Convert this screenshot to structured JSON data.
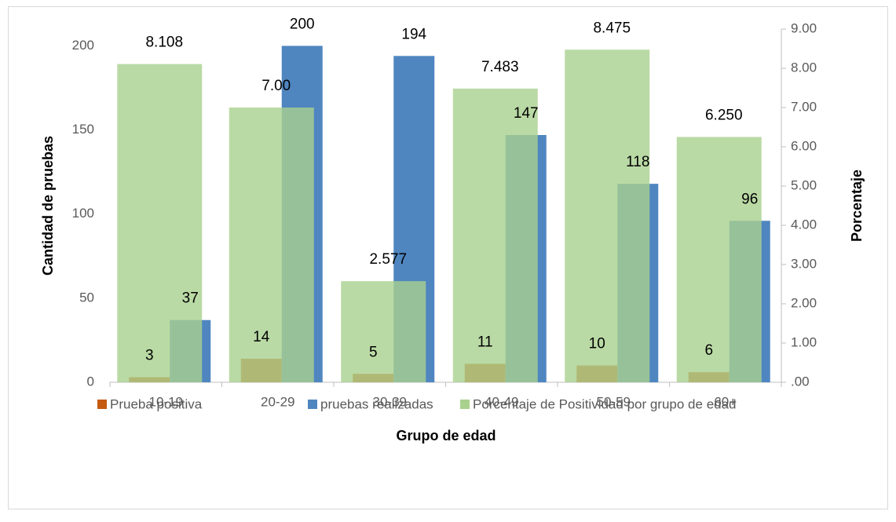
{
  "chart_data": {
    "type": "bar",
    "x_label": "Grupo de edad",
    "y_label": "Cantidad de pruebas",
    "y2_label": "Porcentaje",
    "categories": [
      "10-19",
      "20-29",
      "30-39",
      "40-49",
      "50-59",
      "60+"
    ],
    "series": [
      {
        "name": "Prueba positiva",
        "color": "#c55a11",
        "values": [
          3,
          14,
          5,
          11,
          10,
          6
        ]
      },
      {
        "name": "pruebas realizadas",
        "color": "#4f86c0",
        "values": [
          37,
          200,
          194,
          147,
          118,
          96
        ]
      },
      {
        "name": "Porcentaje de Positividad por grupo de edad",
        "color": "#a9d18e",
        "axis": "y2",
        "values": [
          8.108,
          7,
          2.577,
          7.483,
          8.475,
          6.25
        ],
        "value_labels": [
          "8.108",
          "7.00",
          "2.577",
          "7.483",
          "8.475",
          "6.250"
        ]
      }
    ],
    "ylim": [
      0,
      210
    ],
    "yticks": [
      0,
      50,
      100,
      150,
      200
    ],
    "y2lim": [
      0,
      9
    ],
    "y2ticks": [
      {
        "value": 0,
        "label": ".00"
      },
      {
        "value": 1,
        "label": "1.00"
      },
      {
        "value": 2,
        "label": "2.00"
      },
      {
        "value": 3,
        "label": "3.00"
      },
      {
        "value": 4,
        "label": "4.00"
      },
      {
        "value": 5,
        "label": "5.00"
      },
      {
        "value": 6,
        "label": "6.00"
      },
      {
        "value": 7,
        "label": "7.00"
      },
      {
        "value": 8,
        "label": "8.00"
      },
      {
        "value": 9,
        "label": "9.00"
      }
    ],
    "legend": "bottom",
    "grid": false
  }
}
